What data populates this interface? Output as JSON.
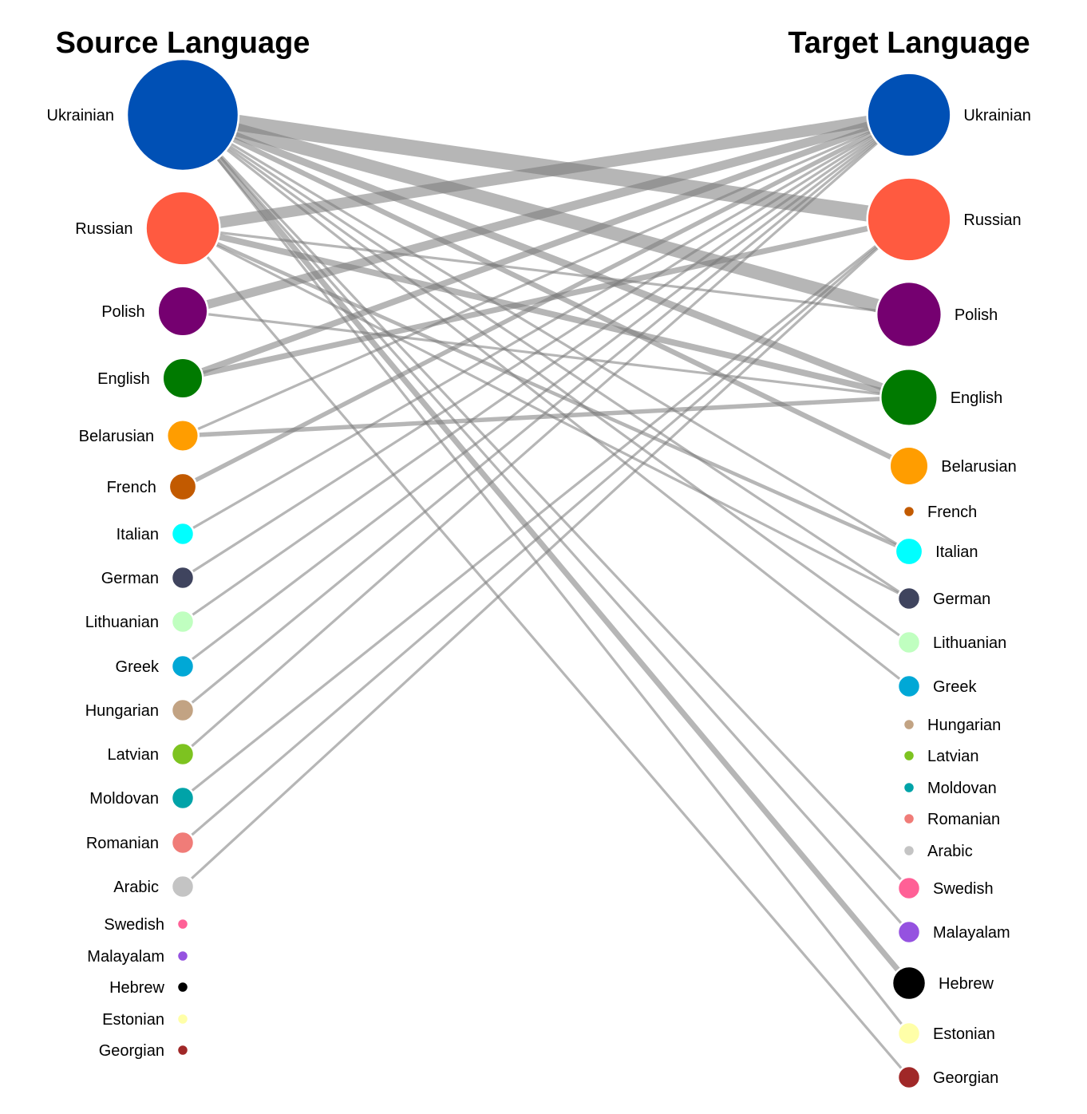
{
  "headings": {
    "source": "Source Language",
    "target": "Target Language"
  },
  "source_languages": [
    {
      "name": "Ukrainian",
      "color": "#0050B5",
      "weight": 100
    },
    {
      "name": "Russian",
      "color": "#FF5A40",
      "weight": 44
    },
    {
      "name": "Polish",
      "color": "#750070",
      "weight": 20
    },
    {
      "name": "English",
      "color": "#007A00",
      "weight": 13
    },
    {
      "name": "Belarusian",
      "color": "#FF9D00",
      "weight": 8
    },
    {
      "name": "French",
      "color": "#C25A00",
      "weight": 6
    },
    {
      "name": "Italian",
      "color": "#00FFFF",
      "weight": 4
    },
    {
      "name": "German",
      "color": "#3F445E",
      "weight": 4
    },
    {
      "name": "Lithuanian",
      "color": "#C0FFC0",
      "weight": 4
    },
    {
      "name": "Greek",
      "color": "#00A8D6",
      "weight": 4
    },
    {
      "name": "Hungarian",
      "color": "#C2A383",
      "weight": 4
    },
    {
      "name": "Latvian",
      "color": "#7DC320",
      "weight": 4
    },
    {
      "name": "Moldovan",
      "color": "#00A3A8",
      "weight": 4
    },
    {
      "name": "Romanian",
      "color": "#F07C78",
      "weight": 4
    },
    {
      "name": "Arabic",
      "color": "#C4C4C4",
      "weight": 4
    },
    {
      "name": "Swedish",
      "color": "#FF6096",
      "weight": 1
    },
    {
      "name": "Malayalam",
      "color": "#9552E0",
      "weight": 1
    },
    {
      "name": "Hebrew",
      "color": "#000000",
      "weight": 1
    },
    {
      "name": "Estonian",
      "color": "#FFFFA8",
      "weight": 1
    },
    {
      "name": "Georgian",
      "color": "#A02828",
      "weight": 1
    }
  ],
  "target_languages": [
    {
      "name": "Ukrainian",
      "color": "#0050B5",
      "weight": 56
    },
    {
      "name": "Russian",
      "color": "#FF5A40",
      "weight": 56
    },
    {
      "name": "Polish",
      "color": "#750070",
      "weight": 34
    },
    {
      "name": "English",
      "color": "#007A00",
      "weight": 26
    },
    {
      "name": "Belarusian",
      "color": "#FF9D00",
      "weight": 12
    },
    {
      "name": "French",
      "color": "#C25A00",
      "weight": 1
    },
    {
      "name": "Italian",
      "color": "#00FFFF",
      "weight": 6
    },
    {
      "name": "German",
      "color": "#3F445E",
      "weight": 4
    },
    {
      "name": "Lithuanian",
      "color": "#C0FFC0",
      "weight": 4
    },
    {
      "name": "Greek",
      "color": "#00A8D6",
      "weight": 4
    },
    {
      "name": "Hungarian",
      "color": "#C2A383",
      "weight": 1
    },
    {
      "name": "Latvian",
      "color": "#7DC320",
      "weight": 1
    },
    {
      "name": "Moldovan",
      "color": "#00A3A8",
      "weight": 1
    },
    {
      "name": "Romanian",
      "color": "#F07C78",
      "weight": 1
    },
    {
      "name": "Arabic",
      "color": "#C4C4C4",
      "weight": 1
    },
    {
      "name": "Swedish",
      "color": "#FF6096",
      "weight": 4
    },
    {
      "name": "Malayalam",
      "color": "#9552E0",
      "weight": 4
    },
    {
      "name": "Hebrew",
      "color": "#000000",
      "weight": 9
    },
    {
      "name": "Estonian",
      "color": "#FFFFA8",
      "weight": 4
    },
    {
      "name": "Georgian",
      "color": "#A02828",
      "weight": 4
    }
  ],
  "links": [
    {
      "source": "Ukrainian",
      "target": "Russian",
      "weight": 40
    },
    {
      "source": "Ukrainian",
      "target": "Polish",
      "weight": 28
    },
    {
      "source": "Ukrainian",
      "target": "English",
      "weight": 8
    },
    {
      "source": "Ukrainian",
      "target": "Belarusian",
      "weight": 4
    },
    {
      "source": "Ukrainian",
      "target": "Hebrew",
      "weight": 5
    },
    {
      "source": "Ukrainian",
      "target": "Italian",
      "weight": 1
    },
    {
      "source": "Ukrainian",
      "target": "German",
      "weight": 1
    },
    {
      "source": "Ukrainian",
      "target": "Lithuanian",
      "weight": 1
    },
    {
      "source": "Ukrainian",
      "target": "Greek",
      "weight": 1
    },
    {
      "source": "Ukrainian",
      "target": "Swedish",
      "weight": 1
    },
    {
      "source": "Ukrainian",
      "target": "Malayalam",
      "weight": 1
    },
    {
      "source": "Ukrainian",
      "target": "Estonian",
      "weight": 1
    },
    {
      "source": "Russian",
      "target": "Ukrainian",
      "weight": 20
    },
    {
      "source": "Russian",
      "target": "English",
      "weight": 6
    },
    {
      "source": "Russian",
      "target": "Polish",
      "weight": 1
    },
    {
      "source": "Russian",
      "target": "Italian",
      "weight": 2
    },
    {
      "source": "Russian",
      "target": "German",
      "weight": 1
    },
    {
      "source": "Russian",
      "target": "Georgian",
      "weight": 1
    },
    {
      "source": "Polish",
      "target": "Ukrainian",
      "weight": 12
    },
    {
      "source": "Polish",
      "target": "English",
      "weight": 1
    },
    {
      "source": "English",
      "target": "Ukrainian",
      "weight": 6
    },
    {
      "source": "English",
      "target": "Russian",
      "weight": 5
    },
    {
      "source": "Belarusian",
      "target": "English",
      "weight": 3
    },
    {
      "source": "Belarusian",
      "target": "Ukrainian",
      "weight": 1
    },
    {
      "source": "French",
      "target": "Ukrainian",
      "weight": 3
    },
    {
      "source": "Italian",
      "target": "Ukrainian",
      "weight": 1
    },
    {
      "source": "German",
      "target": "Ukrainian",
      "weight": 1
    },
    {
      "source": "Lithuanian",
      "target": "Ukrainian",
      "weight": 1
    },
    {
      "source": "Greek",
      "target": "Ukrainian",
      "weight": 1
    },
    {
      "source": "Hungarian",
      "target": "Ukrainian",
      "weight": 1
    },
    {
      "source": "Latvian",
      "target": "Ukrainian",
      "weight": 1
    },
    {
      "source": "Moldovan",
      "target": "Russian",
      "weight": 1
    },
    {
      "source": "Romanian",
      "target": "Russian",
      "weight": 1
    },
    {
      "source": "Arabic",
      "target": "Russian",
      "weight": 1
    }
  ]
}
